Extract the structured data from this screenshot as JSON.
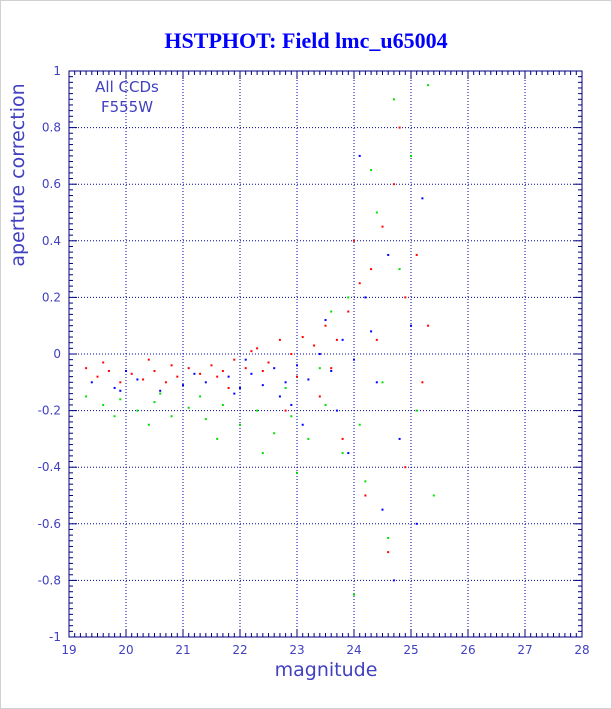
{
  "chart_data": {
    "type": "scatter",
    "title": "HSTPHOT: Field lmc_u65004",
    "xlabel": "magnitude",
    "ylabel": "aperture correction",
    "xlim": [
      19,
      28
    ],
    "ylim": [
      -1,
      1
    ],
    "xticks": [
      19,
      20,
      21,
      22,
      23,
      24,
      25,
      26,
      27,
      28
    ],
    "yticks": [
      -1,
      -0.8,
      -0.6,
      -0.4,
      -0.2,
      0,
      0.2,
      0.4,
      0.6,
      0.8,
      1
    ],
    "xtick_labels": [
      "19",
      "20",
      "21",
      "22",
      "23",
      "24",
      "25",
      "26",
      "27",
      "28"
    ],
    "ytick_labels": [
      "-1",
      "-0.8",
      "-0.6",
      "-0.4",
      "-0.2",
      "0",
      "0.2",
      "0.4",
      "0.6",
      "0.8",
      "1"
    ],
    "grid": true,
    "legend": [
      "All CCDs",
      "F555W"
    ],
    "colors": {
      "frame": "#000080",
      "grid": "#0000a0",
      "title": "#0000ff",
      "labels": "#4040c0",
      "border": "#d0d0d0"
    },
    "series": [
      {
        "color": "#ff0000",
        "points": [
          [
            19.3,
            -0.05
          ],
          [
            19.5,
            -0.08
          ],
          [
            19.7,
            -0.06
          ],
          [
            19.9,
            -0.1
          ],
          [
            20.1,
            -0.07
          ],
          [
            20.3,
            -0.09
          ],
          [
            20.5,
            -0.06
          ],
          [
            20.7,
            -0.1
          ],
          [
            20.9,
            -0.08
          ],
          [
            21.1,
            -0.05
          ],
          [
            21.3,
            -0.07
          ],
          [
            21.5,
            -0.04
          ],
          [
            21.7,
            -0.06
          ],
          [
            21.9,
            -0.02
          ],
          [
            22.1,
            -0.05
          ],
          [
            22.3,
            0.02
          ],
          [
            22.5,
            -0.03
          ],
          [
            22.7,
            0.05
          ],
          [
            22.9,
            0.0
          ],
          [
            23.1,
            0.06
          ],
          [
            23.3,
            0.03
          ],
          [
            23.5,
            0.1
          ],
          [
            23.7,
            0.05
          ],
          [
            23.9,
            0.15
          ],
          [
            24.1,
            0.25
          ],
          [
            24.3,
            0.3
          ],
          [
            24.5,
            0.45
          ],
          [
            24.7,
            0.6
          ],
          [
            24.9,
            0.2
          ],
          [
            25.1,
            0.35
          ],
          [
            23.8,
            -0.3
          ],
          [
            24.2,
            -0.5
          ],
          [
            24.6,
            -0.7
          ],
          [
            22.8,
            -0.2
          ],
          [
            23.4,
            -0.15
          ],
          [
            21.8,
            -0.12
          ],
          [
            20.4,
            -0.02
          ],
          [
            24.0,
            0.4
          ],
          [
            24.8,
            0.8
          ],
          [
            25.3,
            0.1
          ],
          [
            19.6,
            -0.03
          ],
          [
            20.8,
            -0.04
          ],
          [
            21.6,
            -0.08
          ],
          [
            22.4,
            -0.06
          ],
          [
            23.6,
            -0.05
          ],
          [
            24.4,
            0.05
          ],
          [
            24.9,
            -0.4
          ],
          [
            25.2,
            -0.1
          ],
          [
            22.2,
            0.01
          ],
          [
            23.0,
            -0.08
          ]
        ]
      },
      {
        "color": "#0000ff",
        "points": [
          [
            19.4,
            -0.1
          ],
          [
            19.8,
            -0.12
          ],
          [
            20.2,
            -0.09
          ],
          [
            20.6,
            -0.13
          ],
          [
            21.0,
            -0.11
          ],
          [
            21.4,
            -0.1
          ],
          [
            21.8,
            -0.08
          ],
          [
            22.0,
            -0.12
          ],
          [
            22.2,
            -0.07
          ],
          [
            22.4,
            -0.11
          ],
          [
            22.6,
            -0.05
          ],
          [
            22.8,
            -0.1
          ],
          [
            23.0,
            -0.04
          ],
          [
            23.2,
            -0.09
          ],
          [
            23.4,
            0.0
          ],
          [
            23.6,
            -0.06
          ],
          [
            23.8,
            0.05
          ],
          [
            24.0,
            -0.02
          ],
          [
            24.2,
            0.2
          ],
          [
            24.4,
            -0.1
          ],
          [
            24.6,
            0.35
          ],
          [
            24.8,
            -0.3
          ],
          [
            25.0,
            0.1
          ],
          [
            25.2,
            0.55
          ],
          [
            23.1,
            -0.25
          ],
          [
            23.9,
            -0.35
          ],
          [
            24.5,
            -0.55
          ],
          [
            22.9,
            -0.18
          ],
          [
            21.9,
            -0.14
          ],
          [
            20.0,
            -0.06
          ],
          [
            24.1,
            0.7
          ],
          [
            24.7,
            -0.8
          ],
          [
            25.1,
            -0.6
          ],
          [
            23.5,
            0.12
          ],
          [
            22.1,
            -0.02
          ],
          [
            21.2,
            -0.07
          ],
          [
            19.9,
            -0.13
          ],
          [
            24.3,
            0.08
          ],
          [
            23.7,
            -0.2
          ],
          [
            22.7,
            -0.15
          ]
        ]
      },
      {
        "color": "#00e000",
        "points": [
          [
            19.3,
            -0.15
          ],
          [
            19.6,
            -0.18
          ],
          [
            19.9,
            -0.16
          ],
          [
            20.2,
            -0.2
          ],
          [
            20.5,
            -0.17
          ],
          [
            20.8,
            -0.22
          ],
          [
            21.1,
            -0.19
          ],
          [
            21.4,
            -0.23
          ],
          [
            21.7,
            -0.18
          ],
          [
            22.0,
            -0.25
          ],
          [
            22.3,
            -0.2
          ],
          [
            22.6,
            -0.28
          ],
          [
            22.9,
            -0.22
          ],
          [
            23.2,
            -0.3
          ],
          [
            23.5,
            -0.18
          ],
          [
            23.8,
            -0.35
          ],
          [
            24.1,
            -0.25
          ],
          [
            24.4,
            0.5
          ],
          [
            24.7,
            0.9
          ],
          [
            25.0,
            0.7
          ],
          [
            25.3,
            0.95
          ],
          [
            24.2,
            -0.45
          ],
          [
            24.6,
            -0.65
          ],
          [
            24.0,
            -0.85
          ],
          [
            25.4,
            -0.5
          ],
          [
            23.6,
            0.15
          ],
          [
            23.9,
            0.2
          ],
          [
            24.3,
            0.65
          ],
          [
            22.4,
            -0.35
          ],
          [
            21.6,
            -0.3
          ],
          [
            20.4,
            -0.25
          ],
          [
            19.8,
            -0.22
          ],
          [
            23.0,
            -0.42
          ],
          [
            24.8,
            0.3
          ],
          [
            25.1,
            -0.2
          ],
          [
            24.5,
            -0.1
          ],
          [
            22.8,
            -0.12
          ],
          [
            21.3,
            -0.15
          ],
          [
            20.6,
            -0.14
          ],
          [
            23.4,
            -0.05
          ]
        ]
      }
    ]
  }
}
